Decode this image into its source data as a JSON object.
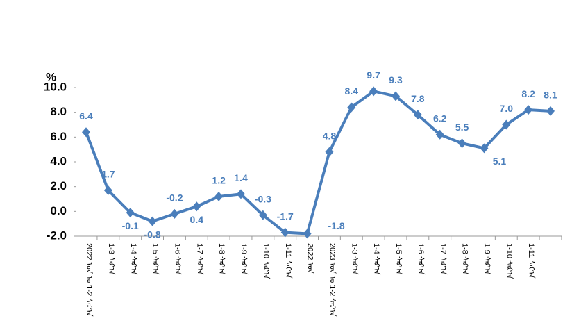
{
  "chart_data": {
    "type": "line",
    "y_unit": "%",
    "categories": [
      "2022 ᠣᠨ ᠤ 1-2 ᠰᠠᠷ᠎ᠠ",
      "1-3 ᠰᠠᠷ᠎ᠠ",
      "1-4 ᠰᠠᠷ᠎ᠠ",
      "1-5 ᠰᠠᠷ᠎ᠠ",
      "1-6 ᠰᠠᠷ᠎ᠠ",
      "1-7 ᠰᠠᠷ᠎ᠠ",
      "1-8 ᠰᠠᠷ᠎ᠠ",
      "1-9 ᠰᠠᠷ᠎ᠠ",
      "1-10 ᠰᠠᠷ᠎ᠠ",
      "1-11 ᠰᠠᠷ᠎ᠠ",
      "2022 ᠣᠨ",
      "2023 ᠣᠨ ᠤ 1-2 ᠰᠠᠷ᠎ᠠ",
      "1-3 ᠰᠠᠷ᠎ᠠ",
      "1-4 ᠰᠠᠷ᠎ᠠ",
      "1-5 ᠰᠠᠷ᠎ᠠ",
      "1-6 ᠰᠠᠷ᠎ᠠ",
      "1-7 ᠰᠠᠷ᠎ᠠ",
      "1-8 ᠰᠠᠷ᠎ᠠ",
      "1-9 ᠰᠠᠷ᠎ᠠ",
      "1-10 ᠰᠠᠷ᠎ᠠ",
      "1-11 ᠰᠠᠷ᠎ᠠ",
      null
    ],
    "series": [
      {
        "color": "#4a7ebb",
        "values": [
          6.4,
          1.7,
          -0.1,
          -0.8,
          -0.2,
          0.4,
          1.2,
          1.4,
          -0.3,
          -1.7,
          -1.8,
          4.8,
          8.4,
          9.7,
          9.3,
          7.8,
          6.2,
          5.5,
          5.1,
          7.0,
          8.2,
          8.1
        ],
        "value_labels": [
          "6.4",
          "1.7",
          "-0.1",
          "-0.8",
          "-0.2",
          "0.4",
          "1.2",
          "1.4",
          "-0.3",
          "-1.7",
          "-1.8",
          "4.8",
          "8.4",
          "9.7",
          "9.3",
          "7.8",
          "6.2",
          "5.5",
          "5.1",
          "7.0",
          "8.2",
          "8.1"
        ]
      }
    ],
    "ylim": [
      -2,
      10
    ],
    "yticks": [
      {
        "value": -2,
        "label": "-2.0"
      },
      {
        "value": 0,
        "label": "0.0"
      },
      {
        "value": 2,
        "label": "2.0"
      },
      {
        "value": 4,
        "label": "4.0"
      },
      {
        "value": 6,
        "label": "6.0"
      },
      {
        "value": 8,
        "label": "8.0"
      },
      {
        "value": 10,
        "label": "10.0"
      }
    ],
    "grid": false
  }
}
